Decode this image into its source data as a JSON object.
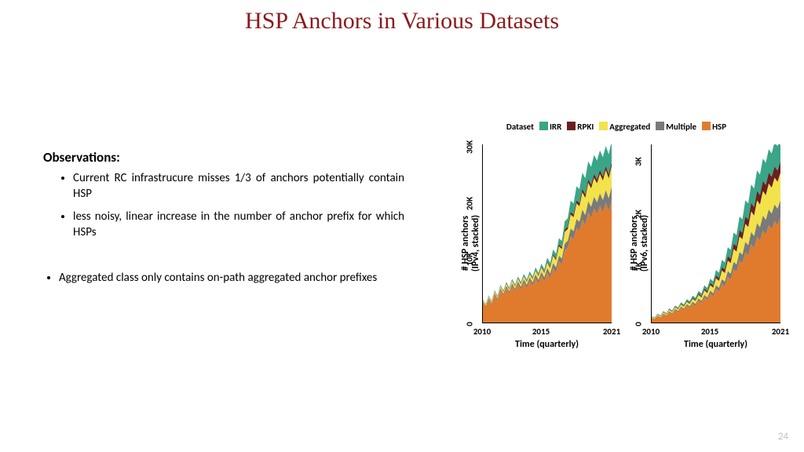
{
  "slide": {
    "title": "HSP Anchors in Various Datasets",
    "title_color": "#8b1a1a",
    "title_fontsize": 30,
    "page_number": "24"
  },
  "text": {
    "observations_heading": "Observations:",
    "bullets": [
      "Current RC infrastrucure misses 1/3 of anchors potentially contain HSP",
      "less noisy, linear increase in the number of anchor prefix for which HSPs"
    ],
    "agg_bullet": "Aggregated class only contains on-path aggregated anchor prefixes"
  },
  "legend": {
    "title": "Dataset",
    "items": [
      {
        "label": "IRR",
        "color": "#3aa587"
      },
      {
        "label": "RPKI",
        "color": "#6b1f1f"
      },
      {
        "label": "Aggregated",
        "color": "#f2e24b"
      },
      {
        "label": "Multiple",
        "color": "#7a7a7a"
      },
      {
        "label": "HSP",
        "color": "#e07b2e"
      }
    ]
  },
  "chart_common": {
    "type": "stacked-area",
    "background": "#ffffff",
    "axis_color": "#000000",
    "x": {
      "min": 2010,
      "max": 2021,
      "ticks": [
        2010,
        2015,
        2021
      ],
      "label": "Time (quarterly)"
    },
    "n_points": 45,
    "stack_order": [
      "HSP",
      "Multiple",
      "Aggregated",
      "RPKI",
      "IRR"
    ]
  },
  "ipv4": {
    "ylabel_line1": "# HSP anchors",
    "ylabel_line2": "(IPv4, stacked)",
    "y": {
      "min": 0,
      "max": 32000,
      "ticks": [
        0,
        10000,
        20000,
        30000
      ],
      "tick_labels": [
        "0",
        "10K",
        "20K",
        "30K"
      ]
    },
    "series": {
      "HSP": [
        3500,
        2800,
        4200,
        3200,
        5000,
        4000,
        5800,
        4800,
        6200,
        5200,
        6600,
        5600,
        6900,
        5900,
        7200,
        6200,
        7500,
        6600,
        8000,
        7000,
        8400,
        7400,
        9000,
        8000,
        9800,
        9000,
        11000,
        10500,
        13000,
        13500,
        15500,
        15000,
        17000,
        16500,
        18500,
        17500,
        19800,
        18800,
        20500,
        19500,
        21000,
        19800,
        21500,
        20000,
        22000
      ],
      "Multiple": [
        200,
        200,
        250,
        250,
        300,
        300,
        350,
        350,
        400,
        400,
        450,
        450,
        500,
        500,
        550,
        550,
        600,
        600,
        650,
        650,
        700,
        700,
        800,
        800,
        900,
        900,
        1000,
        1000,
        1200,
        1200,
        1400,
        1400,
        1600,
        1600,
        1800,
        1800,
        2000,
        2000,
        2100,
        2100,
        2200,
        2200,
        2300,
        2300,
        2400
      ],
      "Aggregated": [
        200,
        200,
        250,
        250,
        300,
        300,
        350,
        350,
        400,
        400,
        450,
        450,
        500,
        500,
        550,
        550,
        600,
        600,
        700,
        700,
        800,
        800,
        1000,
        1000,
        1300,
        1300,
        1700,
        1700,
        2100,
        2100,
        2500,
        2500,
        2800,
        2800,
        3100,
        3100,
        3300,
        3300,
        3400,
        3400,
        3500,
        3500,
        3600,
        3600,
        3700
      ],
      "RPKI": [
        50,
        50,
        60,
        60,
        70,
        70,
        80,
        80,
        90,
        90,
        100,
        100,
        110,
        110,
        120,
        120,
        130,
        130,
        150,
        150,
        180,
        180,
        220,
        220,
        280,
        280,
        350,
        350,
        420,
        420,
        500,
        500,
        560,
        560,
        620,
        620,
        660,
        660,
        690,
        690,
        710,
        710,
        720,
        720,
        730
      ],
      "IRR": [
        100,
        100,
        120,
        120,
        150,
        150,
        180,
        180,
        200,
        200,
        230,
        230,
        260,
        260,
        300,
        300,
        340,
        340,
        400,
        400,
        500,
        500,
        650,
        650,
        850,
        850,
        1100,
        1100,
        1500,
        1500,
        2000,
        2000,
        2500,
        2500,
        2900,
        2900,
        3200,
        3200,
        3400,
        3400,
        3500,
        3500,
        3600,
        3600,
        3700
      ]
    }
  },
  "ipv6": {
    "ylabel_line1": "# HSP anchors",
    "ylabel_line2": "(IPv6, stacked)",
    "y": {
      "min": 0,
      "max": 3400,
      "ticks": [
        0,
        1000,
        2000,
        3000
      ],
      "tick_labels": [
        "0",
        "1K",
        "2K",
        "3K"
      ]
    },
    "series": {
      "HSP": [
        80,
        60,
        120,
        90,
        160,
        120,
        200,
        160,
        240,
        200,
        280,
        240,
        320,
        280,
        360,
        320,
        420,
        370,
        480,
        430,
        550,
        500,
        640,
        590,
        740,
        690,
        870,
        820,
        1020,
        970,
        1180,
        1130,
        1340,
        1280,
        1500,
        1420,
        1640,
        1560,
        1760,
        1680,
        1860,
        1780,
        1940,
        1860,
        2010
      ],
      "Multiple": [
        10,
        10,
        12,
        12,
        15,
        15,
        18,
        18,
        22,
        22,
        26,
        26,
        30,
        30,
        35,
        35,
        40,
        40,
        48,
        48,
        58,
        58,
        72,
        72,
        90,
        90,
        112,
        112,
        138,
        138,
        168,
        168,
        200,
        200,
        230,
        230,
        258,
        258,
        282,
        282,
        300,
        300,
        314,
        314,
        324
      ],
      "Aggregated": [
        15,
        15,
        18,
        18,
        22,
        22,
        27,
        27,
        33,
        33,
        40,
        40,
        48,
        48,
        58,
        58,
        70,
        70,
        86,
        86,
        106,
        106,
        132,
        132,
        164,
        164,
        202,
        202,
        246,
        246,
        294,
        294,
        344,
        344,
        392,
        392,
        434,
        434,
        468,
        468,
        494,
        494,
        512,
        512,
        524
      ],
      "RPKI": [
        5,
        5,
        6,
        6,
        7,
        7,
        9,
        9,
        11,
        11,
        14,
        14,
        17,
        17,
        21,
        21,
        26,
        26,
        33,
        33,
        42,
        42,
        54,
        54,
        68,
        68,
        84,
        84,
        102,
        102,
        122,
        122,
        142,
        142,
        162,
        162,
        180,
        180,
        194,
        194,
        206,
        206,
        214,
        214,
        220
      ],
      "IRR": [
        8,
        8,
        10,
        10,
        13,
        13,
        16,
        16,
        20,
        20,
        25,
        25,
        31,
        31,
        39,
        39,
        49,
        49,
        62,
        62,
        80,
        80,
        104,
        104,
        134,
        134,
        170,
        170,
        212,
        212,
        258,
        258,
        306,
        306,
        352,
        352,
        392,
        392,
        424,
        424,
        448,
        448,
        464,
        464,
        476
      ]
    }
  }
}
